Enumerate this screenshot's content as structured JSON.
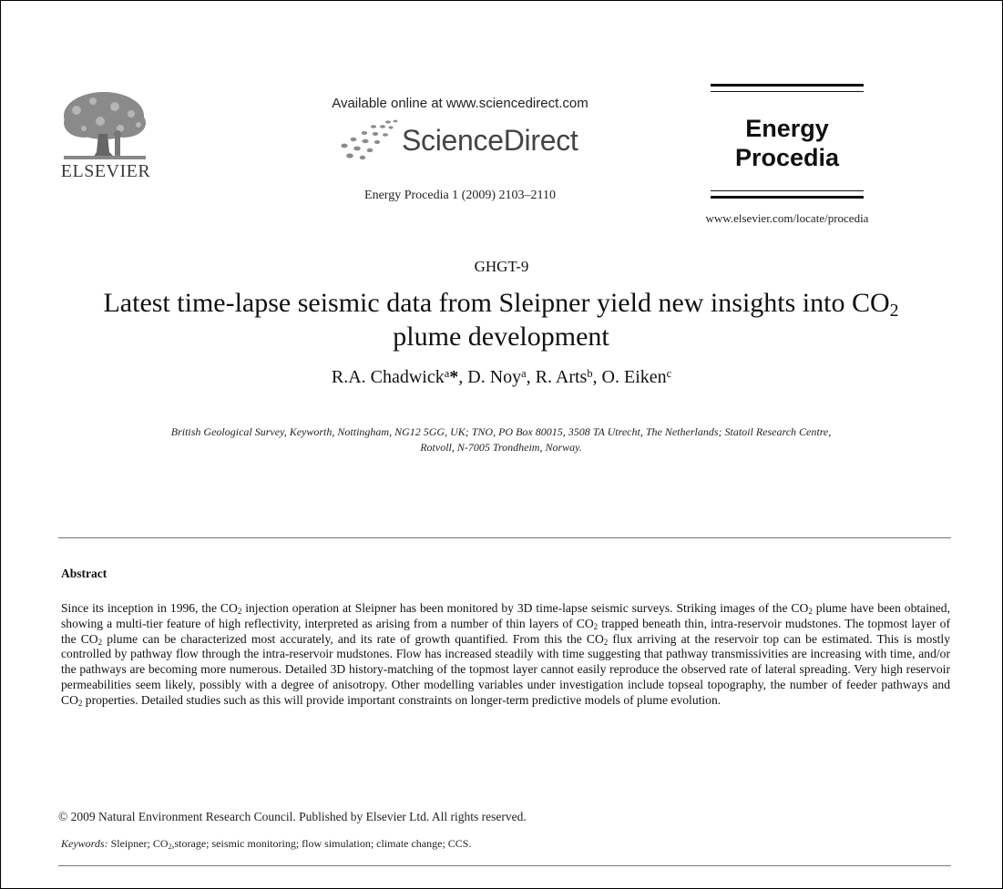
{
  "header": {
    "publisher_wordmark": "ELSEVIER",
    "available_online": "Available online at www.sciencedirect.com",
    "sciencedirect_wordmark": "ScienceDirect",
    "citation": "Energy Procedia 1 (2009) 2103–2110",
    "journal_title_line1": "Energy",
    "journal_title_line2": "Procedia",
    "journal_url": "www.elsevier.com/locate/procedia"
  },
  "paper": {
    "conference": "GHGT-9",
    "title_part1": "Latest time-lapse seismic data from Sleipner yield new insights into CO",
    "title_sub": "2",
    "title_part2": "plume development",
    "authors": [
      {
        "name": "R.A. Chadwick",
        "mark": "a",
        "star": "*"
      },
      {
        "name": "D. Noy",
        "mark": "a"
      },
      {
        "name": "R. Arts",
        "mark": "b"
      },
      {
        "name": "O. Eiken",
        "mark": "c"
      }
    ],
    "affiliation_line1": "British Geological Survey, Keyworth, Nottingham, NG12 5GG, UK; TNO, PO Box 80015, 3508 TA Utrecht, The Netherlands; Statoil Research Centre,",
    "affiliation_line2": "Rotvoll, N-7005 Trondheim, Norway."
  },
  "abstract": {
    "heading": "Abstract",
    "body": "Since its inception in 1996, the CO2 injection operation at Sleipner has been monitored by 3D time-lapse seismic surveys. Striking images of the CO2 plume have been obtained, showing a multi-tier feature of high reflectivity, interpreted as arising from a number of thin layers of CO2 trapped beneath thin, intra-reservoir mudstones. The topmost layer of the CO2 plume can be characterized most accurately, and its rate of growth quantified. From this the CO2 flux arriving at the reservoir top can be estimated. This is mostly controlled by pathway flow through the intra-reservoir mudstones.  Flow has increased steadily with time suggesting that pathway transmissivities are increasing with time, and/or the pathways are becoming more numerous. Detailed 3D history-matching of the topmost layer cannot easily reproduce the observed rate of lateral spreading. Very high reservoir permeabilities seem likely, possibly with a degree of anisotropy. Other modelling variables under investigation include topseal topography, the number of feeder pathways and CO2 properties. Detailed studies such as this will provide important constraints on longer-term predictive models of plume evolution.",
    "copyright": "© 2009 Natural Environment Research Council. Published by Elsevier Ltd. All rights reserved.",
    "keywords_label": "Keywords:",
    "keywords": "Sleipner; CO2,storage; seismic monitoring; flow simulation; climate change; CCS."
  }
}
